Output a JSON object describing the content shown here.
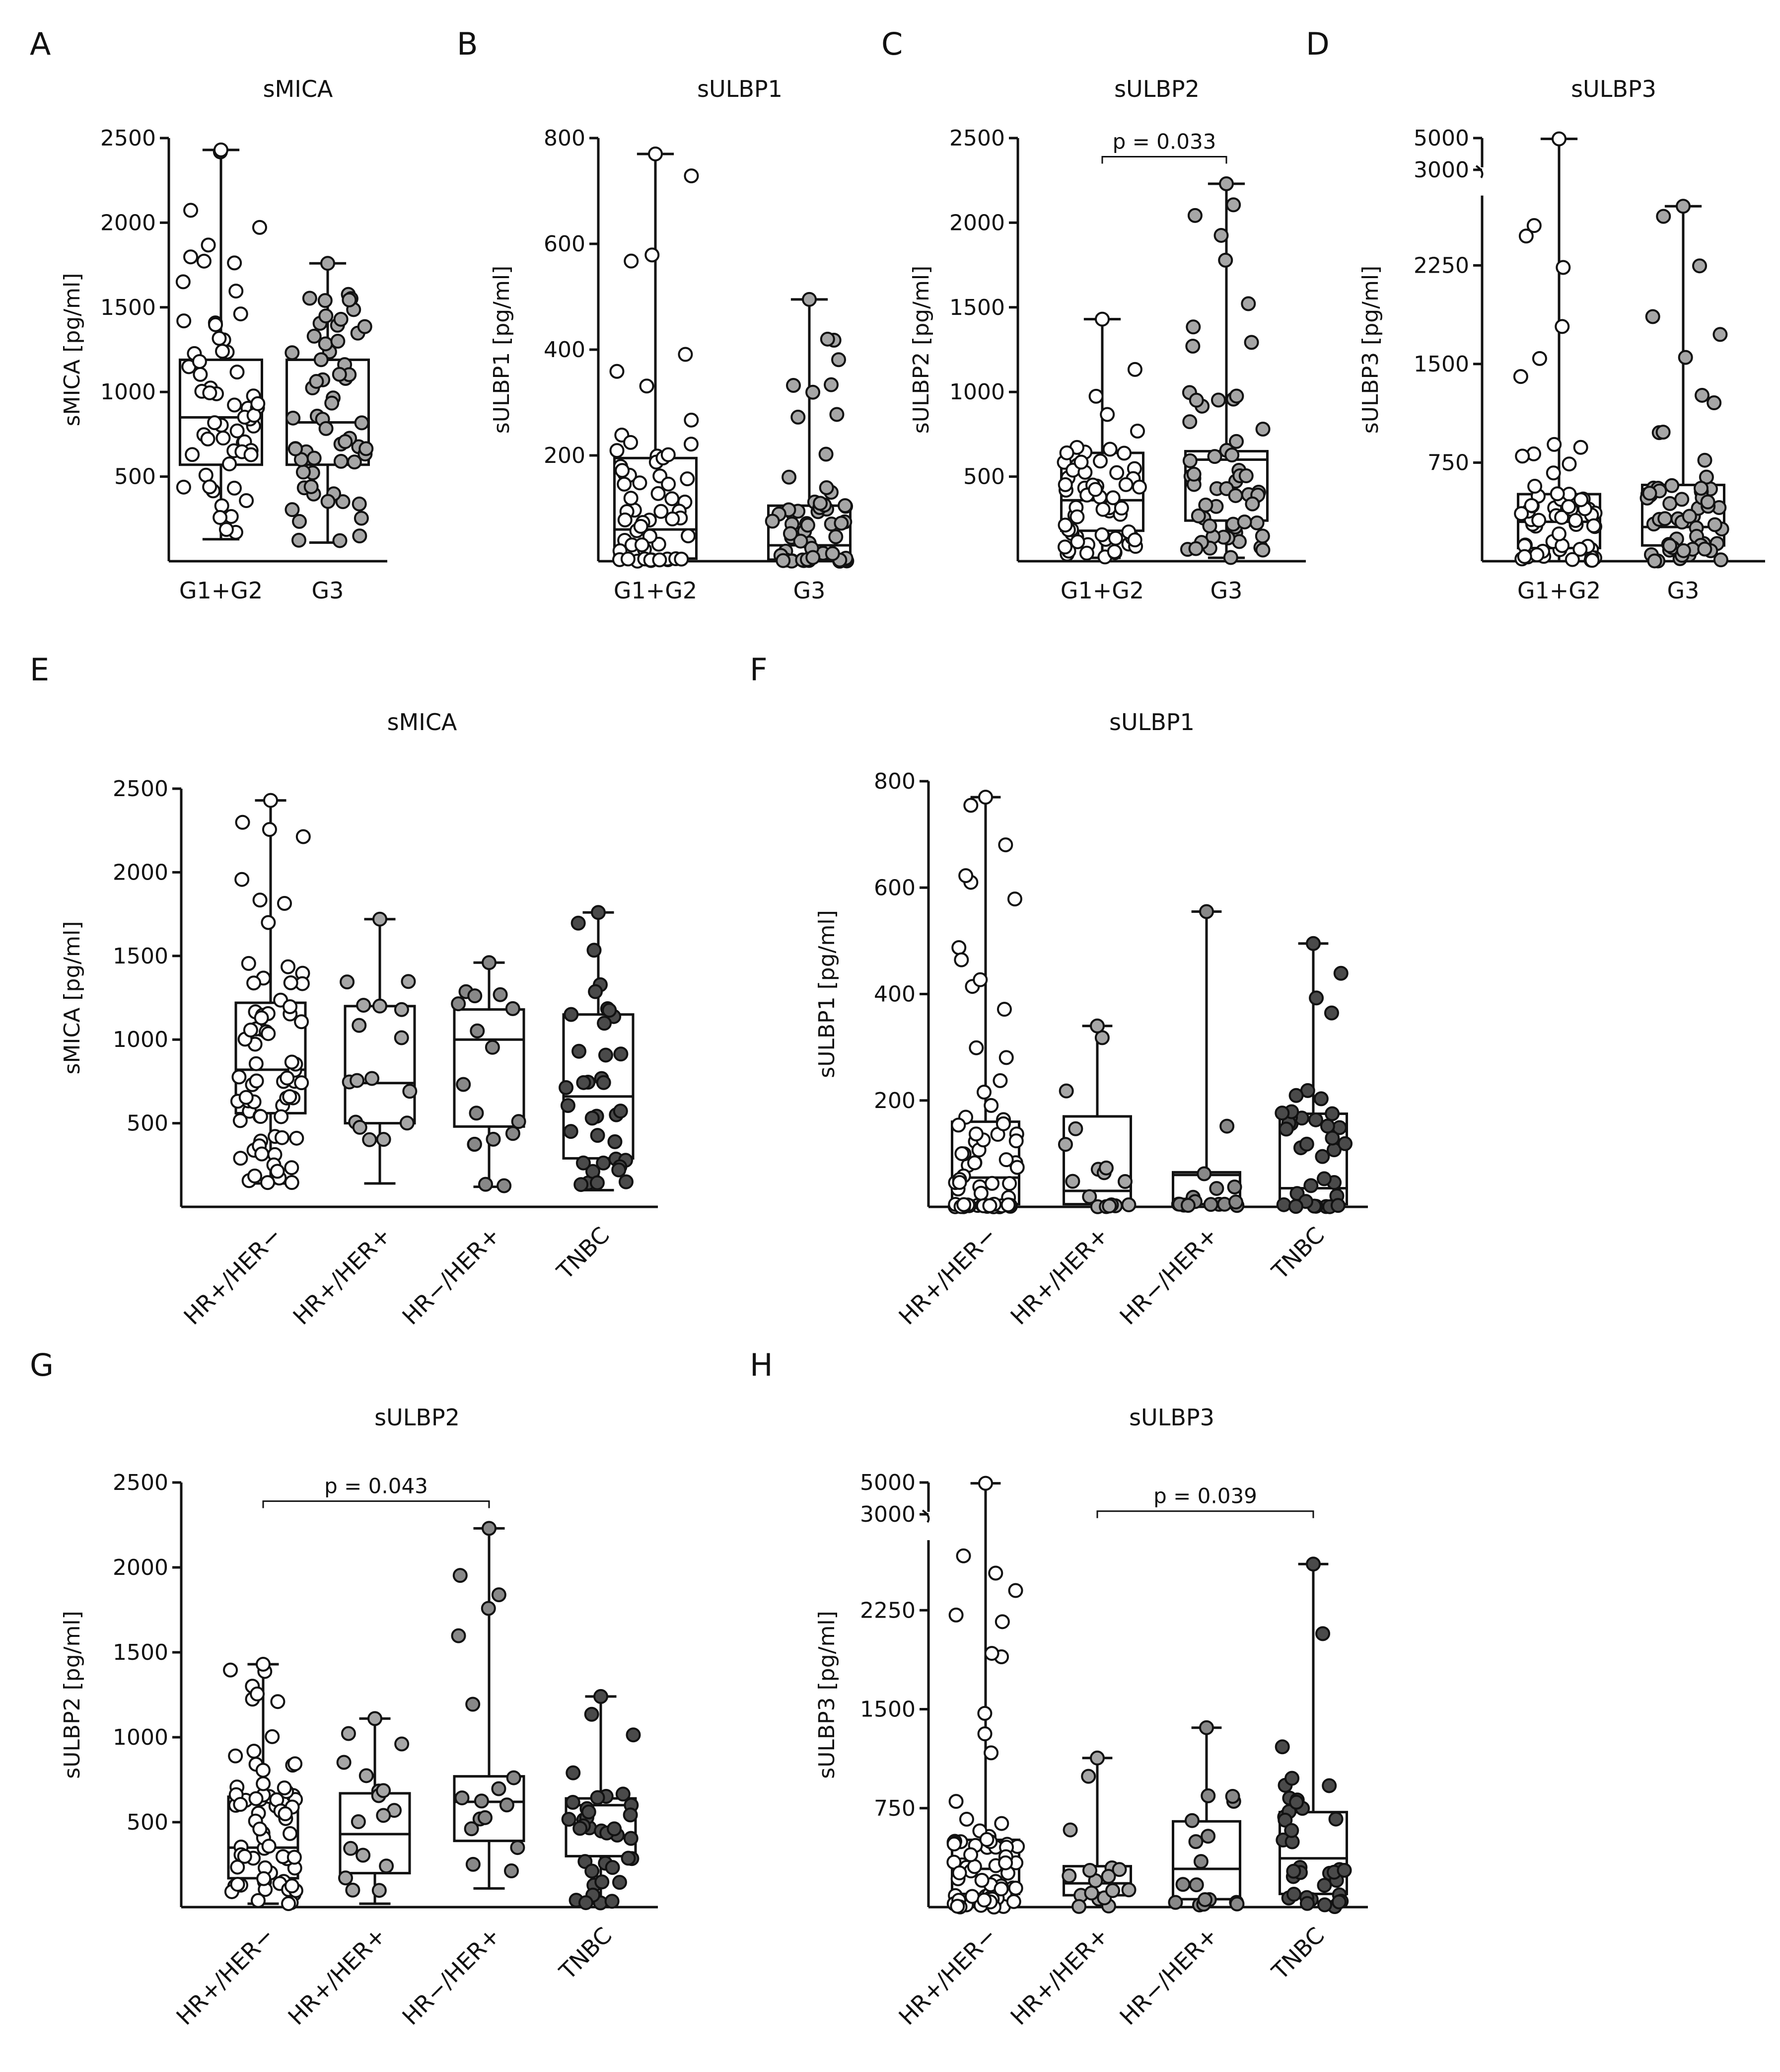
{
  "figure": {
    "palette": {
      "white": "#ffffff",
      "light_gray": "#a6a6a6",
      "mid_gray": "#888888",
      "dark_gray": "#4a4a4a",
      "stroke": "#111111"
    }
  },
  "chart_data": [
    {
      "id": "A",
      "letter": "A",
      "type": "box",
      "title": "sMICA",
      "ylabel": "sMICA [pg/ml]",
      "categories": [
        "G1+G2",
        "G3"
      ],
      "ylim": [
        0,
        2500
      ],
      "ticks": [
        {
          "v": 500,
          "label": "500"
        },
        {
          "v": 1000,
          "label": "1000"
        },
        {
          "v": 1500,
          "label": "1500"
        },
        {
          "v": 2000,
          "label": "2000"
        },
        {
          "v": 2500,
          "label": "2500"
        }
      ],
      "series": [
        {
          "name": "G1+G2",
          "min": 130,
          "q1": 570,
          "median": 850,
          "q3": 1190,
          "max": 2430,
          "fill": "white"
        },
        {
          "name": "G3",
          "min": 110,
          "q1": 570,
          "median": 820,
          "q3": 1190,
          "max": 1760,
          "fill": "light_gray"
        }
      ]
    },
    {
      "id": "B",
      "letter": "B",
      "type": "box",
      "title": "sULBP1",
      "ylabel": "sULBP1 [pg/ml]",
      "categories": [
        "G1+G2",
        "G3"
      ],
      "ylim": [
        0,
        800
      ],
      "ticks": [
        {
          "v": 200,
          "label": "200"
        },
        {
          "v": 400,
          "label": "400"
        },
        {
          "v": 600,
          "label": "600"
        },
        {
          "v": 800,
          "label": "800"
        }
      ],
      "series": [
        {
          "name": "G1+G2",
          "min": 0,
          "q1": 5,
          "median": 60,
          "q3": 195,
          "max": 770,
          "fill": "white"
        },
        {
          "name": "G3",
          "min": 0,
          "q1": 3,
          "median": 30,
          "q3": 105,
          "max": 495,
          "fill": "light_gray"
        }
      ]
    },
    {
      "id": "C",
      "letter": "C",
      "type": "box",
      "title": "sULBP2",
      "ylabel": "sULBP2 [pg/ml]",
      "categories": [
        "G1+G2",
        "G3"
      ],
      "ylim": [
        0,
        2500
      ],
      "ticks": [
        {
          "v": 500,
          "label": "500"
        },
        {
          "v": 1000,
          "label": "1000"
        },
        {
          "v": 1500,
          "label": "1500"
        },
        {
          "v": 2000,
          "label": "2000"
        },
        {
          "v": 2500,
          "label": "2500"
        }
      ],
      "series": [
        {
          "name": "G1+G2",
          "min": 20,
          "q1": 180,
          "median": 360,
          "q3": 640,
          "max": 1430,
          "fill": "white"
        },
        {
          "name": "G3",
          "min": 20,
          "q1": 240,
          "median": 600,
          "q3": 650,
          "max": 2230,
          "fill": "light_gray"
        }
      ],
      "pvalue": {
        "label": "p = 0.033",
        "from": 0,
        "to": 1,
        "y": 2390
      }
    },
    {
      "id": "D",
      "letter": "D",
      "type": "box",
      "title": "sULBP3",
      "ylabel": "sULBP3 [pg/ml]",
      "categories": [
        "G1+G2",
        "G3"
      ],
      "ylim": [
        0,
        5000
      ],
      "broken_axis": {
        "lower_max": 2800,
        "upper": [
          3000,
          5000
        ]
      },
      "ticks": [
        {
          "v": 750,
          "label": "750"
        },
        {
          "v": 1500,
          "label": "1500"
        },
        {
          "v": 2250,
          "label": "2250"
        },
        {
          "v": 3000,
          "label": "3000"
        },
        {
          "v": 5000,
          "label": "5000"
        }
      ],
      "series": [
        {
          "name": "G1+G2",
          "min": 0,
          "q1": 100,
          "median": 300,
          "q3": 510,
          "max": 4950,
          "fill": "white"
        },
        {
          "name": "G3",
          "min": 0,
          "q1": 120,
          "median": 260,
          "q3": 580,
          "max": 2700,
          "fill": "light_gray"
        }
      ]
    },
    {
      "id": "E",
      "letter": "E",
      "type": "box",
      "title": "sMICA",
      "ylabel": "sMICA [pg/ml]",
      "categories": [
        "HR+/HER−",
        "HR+/HER+",
        "HR−/HER+",
        "TNBC"
      ],
      "ylim": [
        0,
        2500
      ],
      "ticks": [
        {
          "v": 500,
          "label": "500"
        },
        {
          "v": 1000,
          "label": "1000"
        },
        {
          "v": 1500,
          "label": "1500"
        },
        {
          "v": 2000,
          "label": "2000"
        },
        {
          "v": 2500,
          "label": "2500"
        }
      ],
      "series": [
        {
          "name": "HR+/HER−",
          "min": 140,
          "q1": 560,
          "median": 820,
          "q3": 1220,
          "max": 2430,
          "fill": "white"
        },
        {
          "name": "HR+/HER+",
          "min": 140,
          "q1": 500,
          "median": 740,
          "q3": 1200,
          "max": 1720,
          "fill": "light_gray"
        },
        {
          "name": "HR−/HER+",
          "min": 120,
          "q1": 480,
          "median": 1000,
          "q3": 1180,
          "max": 1460,
          "fill": "mid_gray"
        },
        {
          "name": "TNBC",
          "min": 100,
          "q1": 290,
          "median": 660,
          "q3": 1150,
          "max": 1760,
          "fill": "dark_gray"
        }
      ]
    },
    {
      "id": "F",
      "letter": "F",
      "type": "box",
      "title": "sULBP1",
      "ylabel": "sULBP1 [pg/ml]",
      "categories": [
        "HR+/HER−",
        "HR+/HER+",
        "HR−/HER+",
        "TNBC"
      ],
      "ylim": [
        0,
        800
      ],
      "ticks": [
        {
          "v": 200,
          "label": "200"
        },
        {
          "v": 400,
          "label": "400"
        },
        {
          "v": 600,
          "label": "600"
        },
        {
          "v": 800,
          "label": "800"
        }
      ],
      "series": [
        {
          "name": "HR+/HER−",
          "min": 0,
          "q1": 5,
          "median": 55,
          "q3": 160,
          "max": 770,
          "fill": "white"
        },
        {
          "name": "HR+/HER+",
          "min": 0,
          "q1": 5,
          "median": 30,
          "q3": 170,
          "max": 340,
          "fill": "light_gray"
        },
        {
          "name": "HR−/HER+",
          "min": 0,
          "q1": 5,
          "median": 60,
          "q3": 65,
          "max": 555,
          "fill": "mid_gray"
        },
        {
          "name": "TNBC",
          "min": 0,
          "q1": 5,
          "median": 35,
          "q3": 175,
          "max": 495,
          "fill": "dark_gray"
        }
      ]
    },
    {
      "id": "G",
      "letter": "G",
      "type": "box",
      "title": "sULBP2",
      "ylabel": "sULBP2 [pg/ml]",
      "categories": [
        "HR+/HER−",
        "HR+/HER+",
        "HR−/HER+",
        "TNBC"
      ],
      "ylim": [
        0,
        2500
      ],
      "ticks": [
        {
          "v": 500,
          "label": "500"
        },
        {
          "v": 1000,
          "label": "1000"
        },
        {
          "v": 1500,
          "label": "1500"
        },
        {
          "v": 2000,
          "label": "2000"
        },
        {
          "v": 2500,
          "label": "2500"
        }
      ],
      "series": [
        {
          "name": "HR+/HER−",
          "min": 20,
          "q1": 170,
          "median": 350,
          "q3": 650,
          "max": 1430,
          "fill": "white"
        },
        {
          "name": "HR+/HER+",
          "min": 20,
          "q1": 200,
          "median": 430,
          "q3": 670,
          "max": 1110,
          "fill": "light_gray"
        },
        {
          "name": "HR−/HER+",
          "min": 110,
          "q1": 390,
          "median": 620,
          "q3": 770,
          "max": 2230,
          "fill": "mid_gray"
        },
        {
          "name": "TNBC",
          "min": 20,
          "q1": 300,
          "median": 600,
          "q3": 640,
          "max": 1240,
          "fill": "dark_gray"
        }
      ],
      "pvalue": {
        "label": "p = 0.043",
        "from": 0,
        "to": 2,
        "y": 2390
      }
    },
    {
      "id": "H",
      "letter": "H",
      "type": "box",
      "title": "sULBP3",
      "ylabel": "sULBP3 [pg/ml]",
      "categories": [
        "HR+/HER−",
        "HR+/HER+",
        "HR−/HER+",
        "TNBC"
      ],
      "ylim": [
        0,
        5000
      ],
      "broken_axis": {
        "lower_max": 2800,
        "upper": [
          3000,
          5000
        ]
      },
      "ticks": [
        {
          "v": 750,
          "label": "750"
        },
        {
          "v": 1500,
          "label": "1500"
        },
        {
          "v": 2250,
          "label": "2250"
        },
        {
          "v": 3000,
          "label": "3000"
        },
        {
          "v": 5000,
          "label": "5000"
        }
      ],
      "series": [
        {
          "name": "HR+/HER−",
          "min": 0,
          "q1": 100,
          "median": 290,
          "q3": 510,
          "max": 4950,
          "fill": "white"
        },
        {
          "name": "HR+/HER+",
          "min": 0,
          "q1": 90,
          "median": 180,
          "q3": 310,
          "max": 1130,
          "fill": "light_gray"
        },
        {
          "name": "HR−/HER+",
          "min": 0,
          "q1": 60,
          "median": 290,
          "q3": 650,
          "max": 1360,
          "fill": "mid_gray"
        },
        {
          "name": "TNBC",
          "min": 0,
          "q1": 100,
          "median": 370,
          "q3": 720,
          "max": 2600,
          "fill": "dark_gray"
        }
      ],
      "pvalue": {
        "label": "p = 0.039",
        "from": 1,
        "to": 3,
        "y": 3200
      }
    }
  ]
}
